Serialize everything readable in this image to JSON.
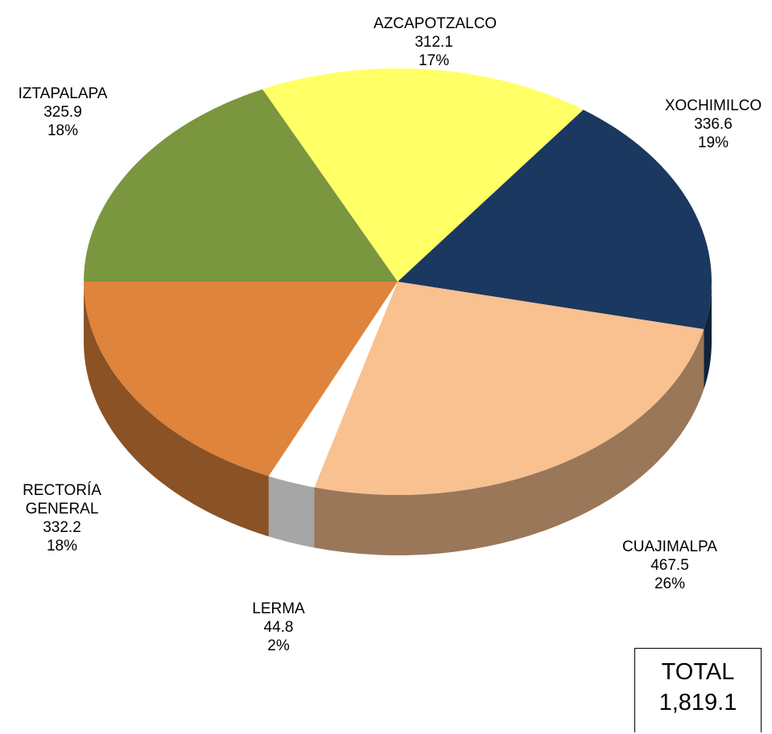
{
  "chart_data": {
    "type": "pie3d",
    "categories": [
      "IZTAPALAPA",
      "AZCAPOTZALCO",
      "XOCHIMILCO",
      "CUAJIMALPA",
      "LERMA",
      "RECTORÍA GENERAL"
    ],
    "values": [
      325.9,
      312.1,
      336.6,
      467.5,
      44.8,
      332.2
    ],
    "percent_labels": [
      "18%",
      "17%",
      "19%",
      "26%",
      "2%",
      "18%"
    ],
    "colors": [
      "#7a963e",
      "#ffff66",
      "#1a3860",
      "#f9c090",
      "#ffffff",
      "#de843c"
    ],
    "total_title": "TOTAL",
    "total": "1,819.1"
  }
}
